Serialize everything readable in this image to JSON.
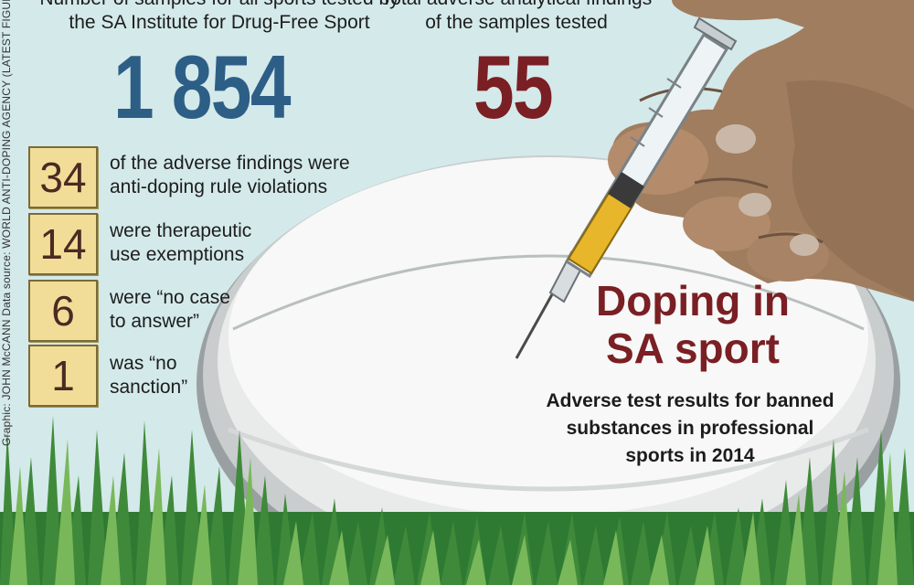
{
  "credit": "Graphic: JOHN McCANN  Data source: WORLD ANTI-DOPING AGENCY (LATEST FIGURES",
  "stats": [
    {
      "label_line1": "Number of samples for all sports tested by",
      "label_line2": "the SA Institute for Drug-Free Sport",
      "value": "1 854",
      "color": "#2d5e86"
    },
    {
      "label_line1": "Total adverse analytical findings",
      "label_line2": "of the samples tested",
      "value": "55",
      "color": "#7a1f24"
    }
  ],
  "breakdown": [
    {
      "value": "34",
      "line1": "of the adverse findings were",
      "line2": "anti-doping rule violations"
    },
    {
      "value": "14",
      "line1": "were therapeutic",
      "line2": "use exemptions"
    },
    {
      "value": "6",
      "line1": "were “no case",
      "line2": "to answer”"
    },
    {
      "value": "1",
      "line1": "was “no",
      "line2": "sanction”"
    }
  ],
  "title": {
    "line1": "Doping in",
    "line2": "SA sport"
  },
  "subtitle": {
    "line1": "Adverse test results for banned",
    "line2": "substances in professional",
    "line3": "sports in 2014"
  },
  "colors": {
    "background": "#d4e9ea",
    "box_fill": "#f1dd97",
    "title": "#7a1f24",
    "total_samples": "#2d5e86",
    "grass": "#3f8a3a"
  }
}
